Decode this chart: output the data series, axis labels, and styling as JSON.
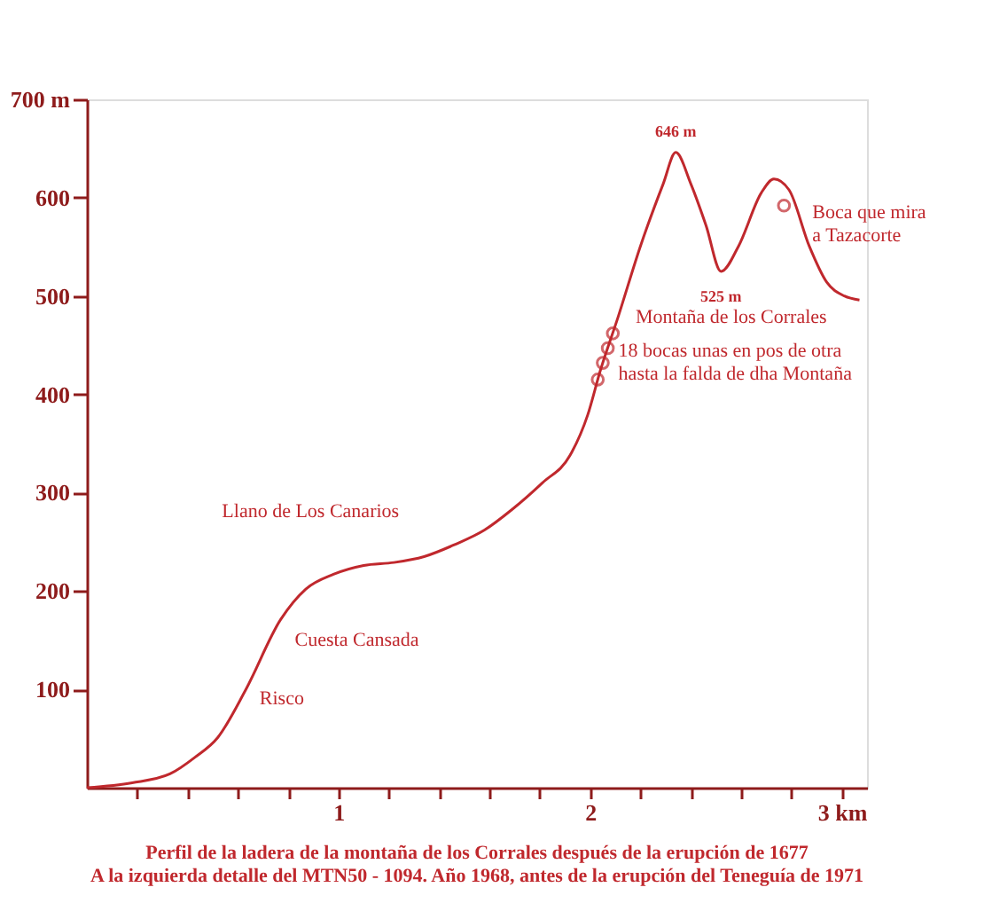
{
  "chart_data": {
    "type": "line",
    "x": [
      0,
      0.18,
      0.33,
      0.43,
      0.52,
      0.63,
      0.77,
      0.87,
      0.98,
      1.1,
      1.22,
      1.34,
      1.46,
      1.58,
      1.69,
      1.81,
      1.92,
      1.99,
      2.04,
      2.11,
      2.2,
      2.29,
      2.34,
      2.4,
      2.46,
      2.52,
      2.59,
      2.68,
      2.73,
      2.79,
      2.87,
      2.94,
      3.01,
      3.07
    ],
    "series": [
      {
        "color": "#c0282d",
        "values": [
          0,
          5,
          14,
          31,
          51,
          99,
          171,
          202,
          217,
          226,
          229,
          235,
          247,
          262,
          283,
          310,
          338,
          379,
          424,
          478,
          551,
          614,
          646,
          614,
          572,
          525,
          551,
          605,
          619,
          608,
          551,
          514,
          500,
          496
        ]
      },
      {
        "type": "scatter",
        "color": "#c0282d",
        "marker": "circle",
        "x": [
          2.03,
          2.05,
          2.07,
          2.09,
          2.77
        ],
        "values": [
          415,
          432,
          447,
          462,
          592
        ]
      }
    ],
    "xlim": [
      0,
      3.1
    ],
    "xticks": [
      {
        "value": 0.2,
        "label": null
      },
      {
        "value": 0.4,
        "label": null
      },
      {
        "value": 0.6,
        "label": null
      },
      {
        "value": 0.8,
        "label": null
      },
      1,
      {
        "value": 1.2,
        "label": null
      },
      {
        "value": 1.4,
        "label": null
      },
      {
        "value": 1.6,
        "label": null
      },
      {
        "value": 1.8,
        "label": null
      },
      2,
      {
        "value": 2.2,
        "label": null
      },
      {
        "value": 2.4,
        "label": null
      },
      {
        "value": 2.6,
        "label": null
      },
      {
        "value": 2.8,
        "label": null
      },
      {
        "value": 3,
        "label": "3 km"
      }
    ],
    "ylim": [
      0,
      700
    ],
    "yticks": [
      100,
      200,
      300,
      400,
      500,
      600,
      {
        "value": 700,
        "label": "700 m"
      }
    ],
    "grid": false,
    "annotations": [
      {
        "text": "646 m",
        "x": 2.34,
        "y": 646
      },
      {
        "text": "525 m",
        "x": 2.52,
        "y": 525
      },
      {
        "text": "Risco",
        "x": 0.63,
        "y": 99
      },
      {
        "text": "Cuesta Cansada",
        "x": 0.77,
        "y": 171
      },
      {
        "text": "Llano de Los Canarios",
        "x": 1.1,
        "y": 226
      },
      {
        "text": "Montaña de los Corrales",
        "x": 2.11,
        "y": 478
      },
      {
        "text": "18 bocas unas en pos de otra\nhasta la falda de dha Montaña",
        "x": 2.07,
        "y": 447
      },
      {
        "text": "Boca que mira\na Tazacorte",
        "x": 2.77,
        "y": 592
      },
      "Perfil de la ladera de la montaña de los Corrales después de la erupción de 1677",
      "A la izquierda detalle del MTN50 - 1094. Año 1968, antes de la erupción del Teneguía de 1971"
    ]
  }
}
